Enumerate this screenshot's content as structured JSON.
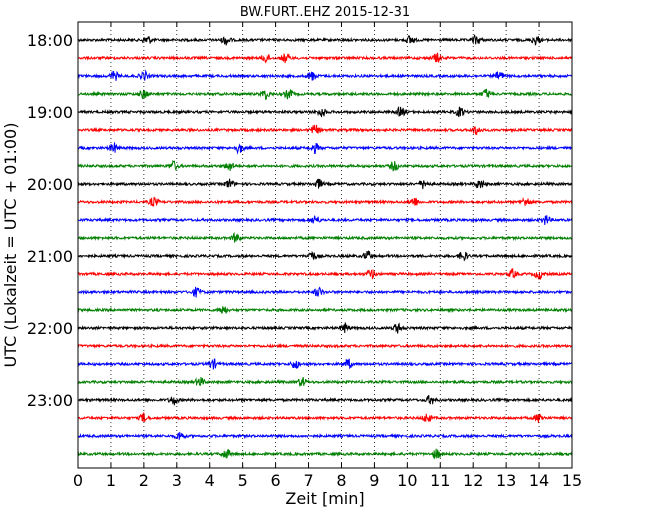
{
  "chart_data": {
    "type": "line",
    "title": "BW.FURT..EHZ 2015-12-31",
    "xlabel": "Zeit  [min]",
    "ylabel": "UTC (Lokalzeit = UTC + 01:00)",
    "xlim": [
      0,
      15
    ],
    "x_ticks": [
      0,
      1,
      2,
      3,
      4,
      5,
      6,
      7,
      8,
      9,
      10,
      11,
      12,
      13,
      14,
      15
    ],
    "x_grid": "dotted-vertical",
    "y_tick_labels": [
      "18:00",
      "19:00",
      "20:00",
      "21:00",
      "22:00",
      "23:00"
    ],
    "trace_start_times": [
      "18:00",
      "18:15",
      "18:30",
      "18:45",
      "19:00",
      "19:15",
      "19:30",
      "19:45",
      "20:00",
      "20:15",
      "20:30",
      "20:45",
      "21:00",
      "21:15",
      "21:30",
      "21:45",
      "22:00",
      "22:15",
      "22:30",
      "22:45",
      "23:00",
      "23:15",
      "23:30",
      "23:45"
    ],
    "trace_color_cycle": [
      "#000000",
      "#ff0000",
      "#0000ff",
      "#008000"
    ],
    "series_note": "24 seismogram traces, each 15 min long, offset vertically by start time; relative amplitude only (no amplitude axis)",
    "bursts_minutes": [
      [
        2.1,
        4.5,
        10.1,
        12.1,
        13.9
      ],
      [
        5.7,
        6.3,
        10.9
      ],
      [
        1.1,
        2.0,
        7.1,
        12.8
      ],
      [
        2.0,
        5.7,
        6.4,
        12.4
      ],
      [
        7.4,
        9.8,
        11.6
      ],
      [
        7.2,
        12.1
      ],
      [
        1.1,
        4.9,
        7.2
      ],
      [
        2.9,
        4.6,
        9.6
      ],
      [
        4.6,
        7.3,
        10.5,
        12.2
      ],
      [
        2.3,
        10.2,
        13.6
      ],
      [
        7.2,
        14.2
      ],
      [
        4.8
      ],
      [
        7.1,
        8.8,
        11.7
      ],
      [
        8.9,
        13.2,
        14.0
      ],
      [
        3.6,
        7.3
      ],
      [
        4.4
      ],
      [
        8.1,
        9.7
      ],
      [],
      [
        4.1,
        6.6,
        8.2
      ],
      [
        3.7,
        6.8
      ],
      [
        2.9,
        10.7
      ],
      [
        2.0,
        10.6,
        14.0
      ],
      [
        3.1
      ],
      [
        4.5,
        10.9
      ]
    ]
  }
}
